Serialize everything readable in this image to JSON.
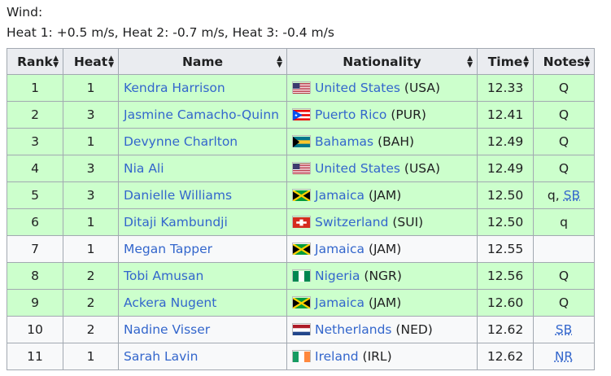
{
  "wind": {
    "label": "Wind:",
    "values": "Heat 1: +0.5 m/s, Heat 2: -0.7 m/s, Heat 3: -0.4 m/s"
  },
  "headers": [
    "Rank",
    "Heat",
    "Name",
    "Nationality",
    "Time",
    "Notes"
  ],
  "rows": [
    {
      "rank": "1",
      "heat": "1",
      "name": "Kendra Harrison",
      "country": "United States",
      "code": "(USA)",
      "flag": "usa-flag",
      "time": "12.33",
      "note": "Q",
      "note_extra": "",
      "qualified": true
    },
    {
      "rank": "2",
      "heat": "3",
      "name": "Jasmine Camacho-Quinn",
      "country": "Puerto Rico",
      "code": "(PUR)",
      "flag": "puerto-rico-flag",
      "time": "12.41",
      "note": "Q",
      "note_extra": "",
      "qualified": true
    },
    {
      "rank": "3",
      "heat": "1",
      "name": "Devynne Charlton",
      "country": "Bahamas",
      "code": "(BAH)",
      "flag": "bahamas-flag",
      "time": "12.49",
      "note": "Q",
      "note_extra": "",
      "qualified": true
    },
    {
      "rank": "4",
      "heat": "3",
      "name": "Nia Ali",
      "country": "United States",
      "code": "(USA)",
      "flag": "usa-flag",
      "time": "12.49",
      "note": "Q",
      "note_extra": "",
      "qualified": true
    },
    {
      "rank": "5",
      "heat": "3",
      "name": "Danielle Williams",
      "country": "Jamaica",
      "code": "(JAM)",
      "flag": "jamaica-flag",
      "time": "12.50",
      "note": "q, ",
      "note_extra": "SB",
      "qualified": true
    },
    {
      "rank": "6",
      "heat": "1",
      "name": "Ditaji Kambundji",
      "country": "Switzerland",
      "code": "(SUI)",
      "flag": "switzerland-flag",
      "time": "12.50",
      "note": "q",
      "note_extra": "",
      "qualified": true
    },
    {
      "rank": "7",
      "heat": "1",
      "name": "Megan Tapper",
      "country": "Jamaica",
      "code": "(JAM)",
      "flag": "jamaica-flag",
      "time": "12.55",
      "note": "",
      "note_extra": "",
      "qualified": false
    },
    {
      "rank": "8",
      "heat": "2",
      "name": "Tobi Amusan",
      "country": "Nigeria",
      "code": "(NGR)",
      "flag": "nigeria-flag",
      "time": "12.56",
      "note": "Q",
      "note_extra": "",
      "qualified": true
    },
    {
      "rank": "9",
      "heat": "2",
      "name": "Ackera Nugent",
      "country": "Jamaica",
      "code": "(JAM)",
      "flag": "jamaica-flag",
      "time": "12.60",
      "note": "Q",
      "note_extra": "",
      "qualified": true
    },
    {
      "rank": "10",
      "heat": "2",
      "name": "Nadine Visser",
      "country": "Netherlands",
      "code": "(NED)",
      "flag": "netherlands-flag",
      "time": "12.62",
      "note": "",
      "note_extra": "SB",
      "qualified": false
    },
    {
      "rank": "11",
      "heat": "1",
      "name": "Sarah Lavin",
      "country": "Ireland",
      "code": "(IRL)",
      "flag": "ireland-flag",
      "time": "12.62",
      "note": "",
      "note_extra": "NR",
      "qualified": false
    }
  ],
  "colors": {
    "qualified_row": "#ccffcc",
    "row": "#f8f9fa",
    "header": "#eaecf0",
    "link": "#3366cc"
  }
}
